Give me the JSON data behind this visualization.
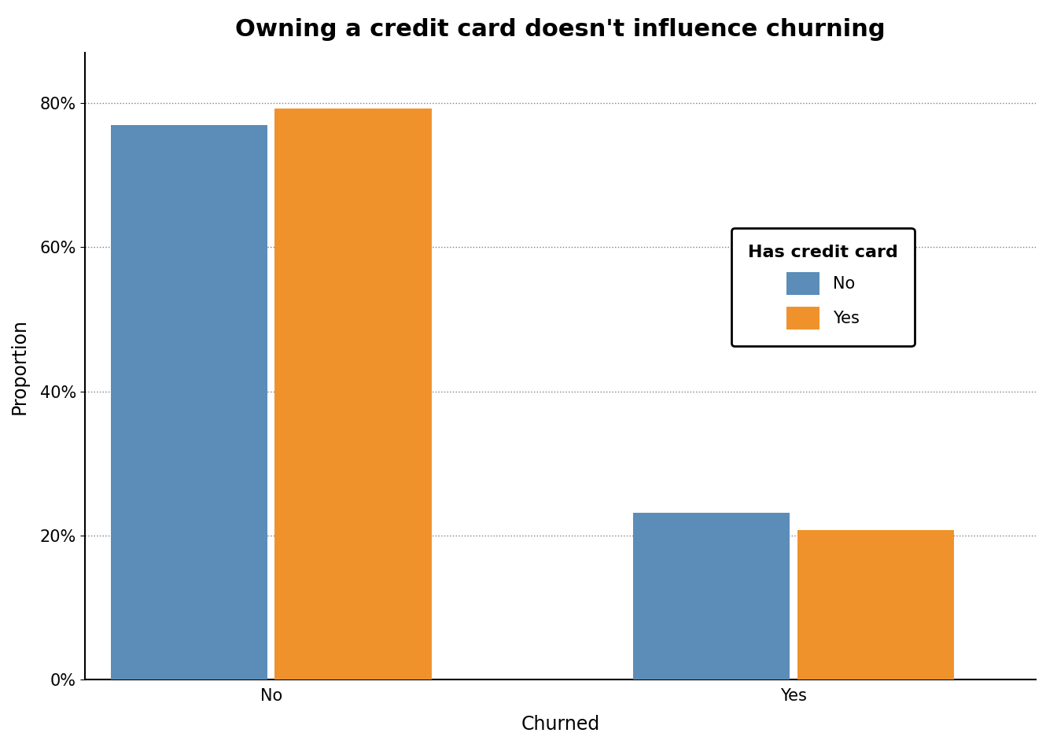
{
  "title": "Owning a credit card doesn't influence churning",
  "xlabel": "Churned",
  "ylabel": "Proportion",
  "categories": [
    "No",
    "Yes"
  ],
  "no_values": [
    0.77,
    0.232
  ],
  "yes_values": [
    0.793,
    0.207
  ],
  "bar_color_no": "#5b8db8",
  "bar_color_yes": "#f0922b",
  "legend_title": "Has credit card",
  "legend_labels": [
    "No",
    "Yes"
  ],
  "ylim": [
    0,
    0.87
  ],
  "yticks": [
    0.0,
    0.2,
    0.4,
    0.6,
    0.8
  ],
  "ytick_labels": [
    "0%",
    "20%",
    "40%",
    "60%",
    "80%"
  ],
  "background_color": "#ffffff",
  "title_fontsize": 22,
  "axis_label_fontsize": 17,
  "tick_fontsize": 15,
  "legend_fontsize": 15,
  "legend_title_fontsize": 16,
  "bar_width": 0.42,
  "x_positions": [
    0.5,
    1.9
  ]
}
